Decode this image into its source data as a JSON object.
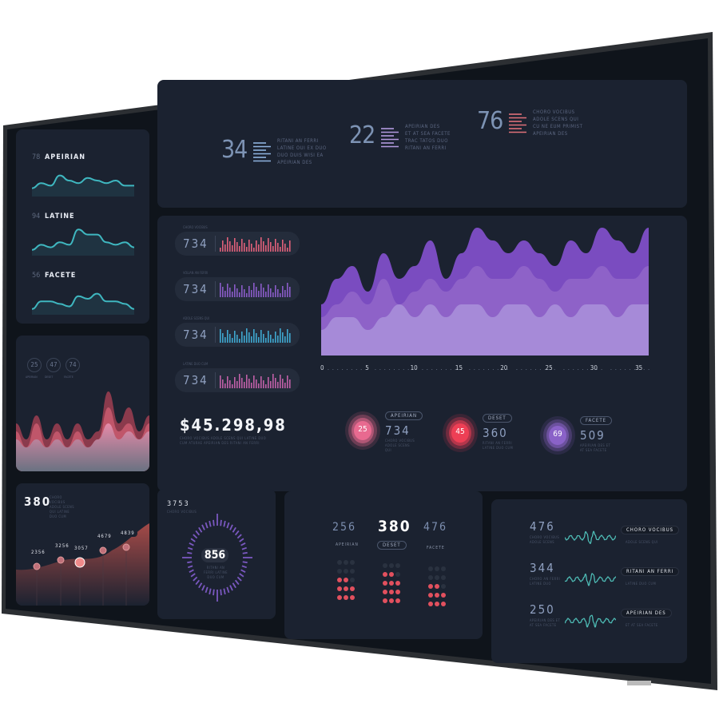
{
  "colors": {
    "screen": "#121821",
    "panel": "#1b2230",
    "teal": "#3fb7c0",
    "purple": "#8a5cc8",
    "pink": "#e0607a",
    "red": "#e84455",
    "bezel": "#2c2f33"
  },
  "left_sparklines": [
    {
      "value": "78",
      "label": "APEIRIAN",
      "points": [
        2,
        4,
        3,
        7,
        5,
        4,
        6,
        5,
        4,
        5,
        3,
        3
      ]
    },
    {
      "value": "94",
      "label": "LATINE",
      "points": [
        1,
        3,
        2,
        4,
        3,
        9,
        7,
        7,
        4,
        3,
        4,
        2
      ]
    },
    {
      "value": "56",
      "label": "FACETE",
      "points": [
        1,
        4,
        4,
        3,
        2,
        6,
        5,
        7,
        4,
        4,
        3,
        1
      ]
    }
  ],
  "mountain_panel": {
    "circles": [
      {
        "value": "25",
        "label": "APEIRIAN"
      },
      {
        "value": "47",
        "label": "DESET"
      },
      {
        "value": "74",
        "label": "FACETE"
      }
    ],
    "layers": [
      [
        5,
        3,
        6,
        3,
        5,
        3,
        5,
        3,
        4,
        9,
        5,
        7,
        4,
        6
      ],
      [
        4,
        2,
        5,
        2,
        4,
        2,
        4,
        2,
        3,
        7,
        4,
        5,
        3,
        5
      ],
      [
        3,
        2,
        3,
        2,
        3,
        2,
        3,
        2,
        3,
        5,
        3,
        4,
        3,
        4
      ]
    ]
  },
  "points_panel": {
    "value": "380",
    "caption": "CHORO VOCIBUS ADOLE SCENS QUI LATINE DUO CUM",
    "points": [
      {
        "label": "2356",
        "y": 2356
      },
      {
        "label": "3256",
        "y": 3256
      },
      {
        "label": "3057",
        "y": 3057
      },
      {
        "label": "4679",
        "y": 4679
      },
      {
        "label": "4839",
        "y": 4839
      }
    ]
  },
  "top_stats": [
    {
      "value": "34",
      "color": "#8fb4e0",
      "text": [
        "RITANI AN FERRI",
        "LATINE OUI EX DUO",
        "DUO DUIS WISI EA",
        "APEIRIAN DES"
      ]
    },
    {
      "value": "22",
      "color": "#b49ae0",
      "text": [
        "APEIRIAN DES",
        "ET AT SEA FACETE",
        "TRAC TATOS DUO",
        "RITANI AN FERRI"
      ]
    },
    {
      "value": "76",
      "color": "#e0707a",
      "text": [
        "CHORO VOCIBUS",
        "ADOLE SCENS QUI",
        "CU NE EUM PRIMIST",
        "APEIRIAN DES"
      ]
    }
  ],
  "bar_rows": [
    {
      "caption": "CHORO VOCIBUS",
      "value": "734",
      "color": "#e0607a"
    },
    {
      "caption": "VOLIAN AN FERRI",
      "value": "734",
      "color": "#8a5cc8"
    },
    {
      "caption": "ADOLE SCENS QUI",
      "value": "734",
      "color": "#3fa8d0"
    },
    {
      "caption": "LATINE DUO CUM",
      "value": "734",
      "color": "#c060a8"
    }
  ],
  "total": {
    "value": "$45.298,98",
    "caption": "CHORO VOCIBUS ADOLE SCENS QUI LATINE DUO CUM ATURAE APEIRIAN DES RITANI AN FERRI"
  },
  "area_chart": {
    "x_ticks": [
      "0",
      "5",
      "10",
      "15",
      "20",
      "25",
      "30",
      "35"
    ],
    "layers": [
      [
        4,
        6,
        7,
        5,
        8,
        6,
        7,
        9,
        6,
        8,
        10,
        9,
        8,
        9,
        8,
        7,
        9,
        8,
        10,
        9,
        8,
        10
      ],
      [
        3,
        4,
        5,
        4,
        6,
        4,
        5,
        6,
        5,
        6,
        7,
        6,
        6,
        7,
        6,
        5,
        6,
        6,
        7,
        6,
        6,
        7
      ],
      [
        2,
        3,
        3,
        2,
        3,
        4,
        3,
        4,
        3,
        4,
        4,
        3,
        4,
        4,
        3,
        4,
        3,
        4,
        4,
        3,
        4,
        4
      ]
    ]
  },
  "rings": [
    {
      "value": "25",
      "tag": "APEIRIAN",
      "number": "734",
      "caption": "CHORO VOCIBUS ADOLE SCENS QUI",
      "color": "#e86a90"
    },
    {
      "value": "45",
      "tag": "DESET",
      "number": "360",
      "caption": "RITANI AN FERRI LATINE DUO CUM",
      "color": "#ee3f55"
    },
    {
      "value": "69",
      "tag": "FACETE",
      "number": "509",
      "caption": "APEIRIAN DES ET AT SEA FACETE",
      "color": "#8a62c8"
    }
  ],
  "gauge": {
    "top_value": "3753",
    "top_caption": "CHORO VOCIBUS",
    "value": "856",
    "caption": "RITANI AN FERRI LATINE DUO CUM"
  },
  "dots_panel": {
    "items": [
      {
        "value": "256",
        "label": "APEIRIAN",
        "filled": 8
      },
      {
        "value": "380",
        "label": "DESET",
        "filled": 11
      },
      {
        "value": "476",
        "label": "FACETE",
        "filled": 8
      }
    ]
  },
  "waves": [
    {
      "value": "476",
      "caption": "CHORO VOCIBUS ADOLE SCENS",
      "tag": "CHORO VOCIBUS",
      "sub": "ADOLE SCENS QUI"
    },
    {
      "value": "344",
      "caption": "CHORO AN FERRI LATINE DUO",
      "tag": "RITANI AN FERRI",
      "sub": "LATINE DUO CUM"
    },
    {
      "value": "250",
      "caption": "APEIRIAN DES ET AT SEA FACETE",
      "tag": "APEIRIAN DES",
      "sub": "ET AT SEA FACETE"
    }
  ]
}
